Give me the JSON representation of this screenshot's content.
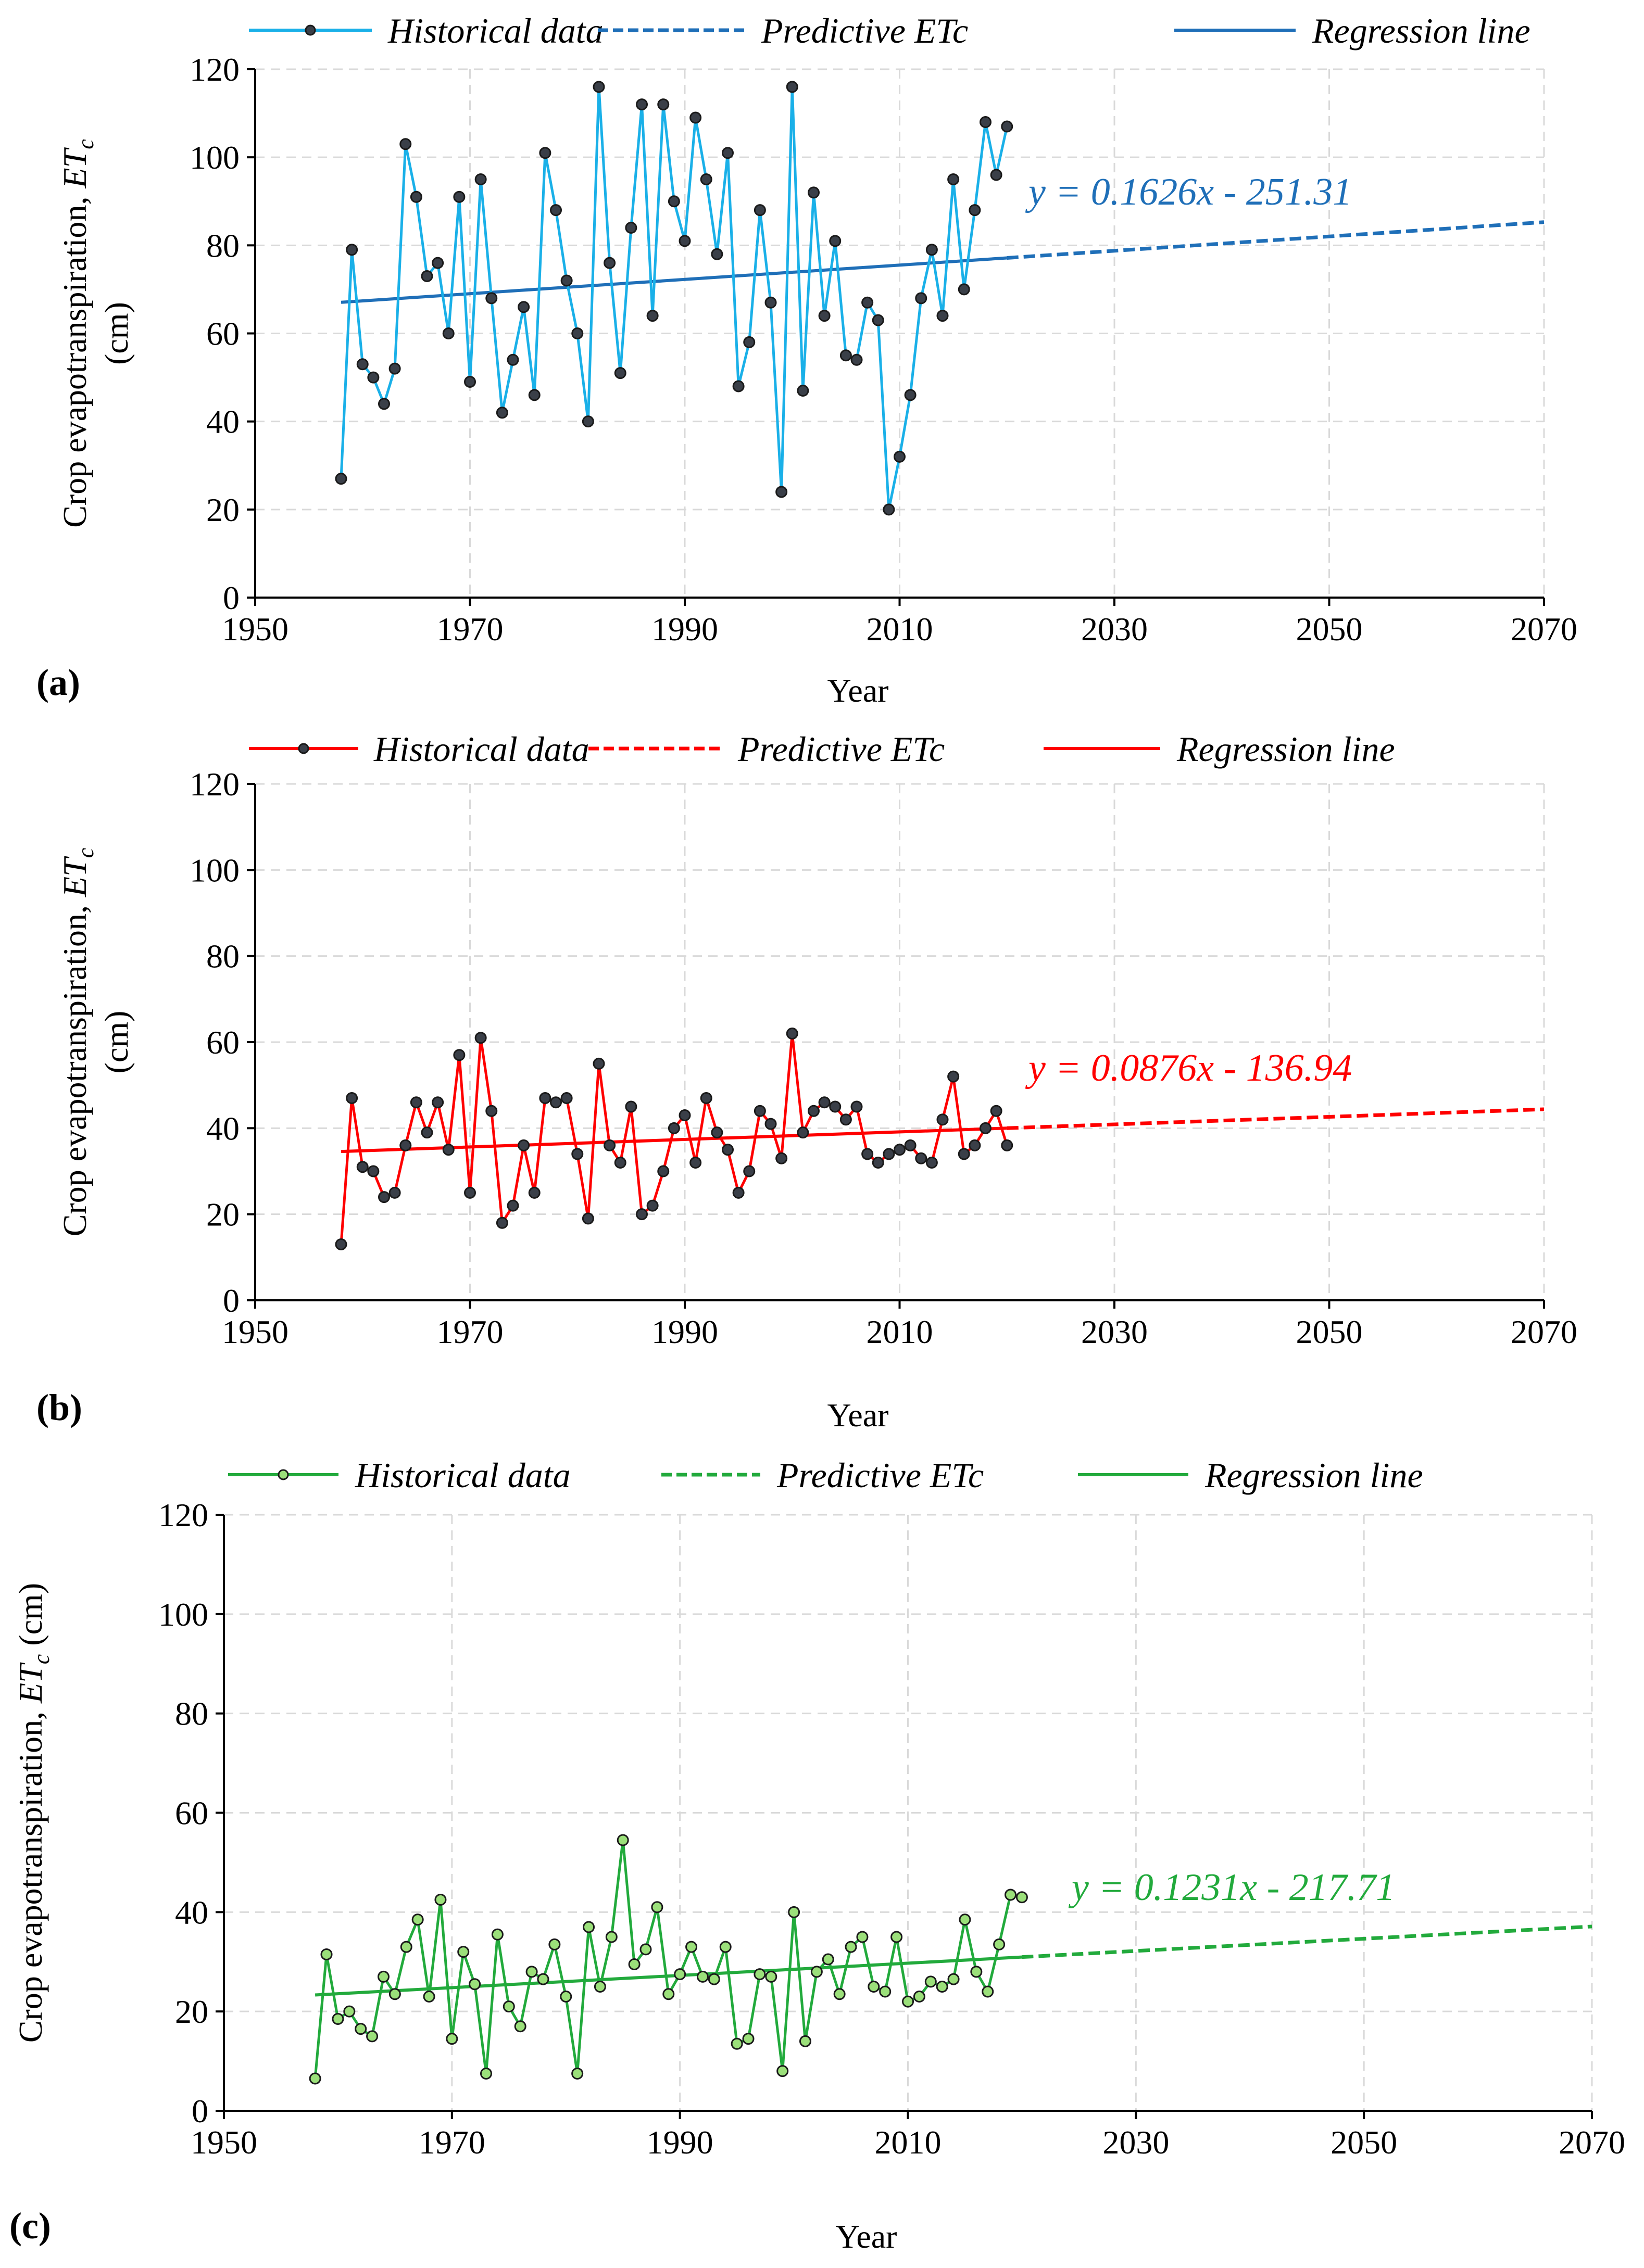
{
  "colors": {
    "panel_a": {
      "historical": "#1ab0e8",
      "regression": "#1f6fb8"
    },
    "panel_b": {
      "historical": "#ff0000",
      "regression": "#ff0000"
    },
    "panel_c": {
      "historical": "#22aa3c",
      "regression": "#22aa3c"
    }
  },
  "chart_data": [
    {
      "panel": "(a)",
      "type": "line",
      "legend": [
        "Historical data",
        "Predictive ETc",
        "Regression line"
      ],
      "xlabel": "Year",
      "ylabel_main": "Crop evapotranspiration,",
      "ylabel_symbol": "ET",
      "ylabel_subscript": "c",
      "ylabel_unit": "(cm)",
      "xlim": [
        1950,
        2070
      ],
      "ylim": [
        0,
        120
      ],
      "xticks": [
        "1950",
        "1970",
        "1990",
        "2010",
        "2030",
        "2050",
        "2070"
      ],
      "yticks": [
        "0",
        "20",
        "40",
        "60",
        "80",
        "100",
        "120"
      ],
      "equation": "y = 0.1626x - 251.31",
      "regression": {
        "slope": 0.1626,
        "intercept": -251.31,
        "fit_range": [
          1958,
          2020
        ],
        "predict_range": [
          2020,
          2070
        ]
      },
      "series": [
        {
          "name": "Historical data",
          "x": [
            1958,
            1959,
            1960,
            1961,
            1962,
            1963,
            1964,
            1965,
            1966,
            1967,
            1968,
            1969,
            1970,
            1971,
            1972,
            1973,
            1974,
            1975,
            1976,
            1977,
            1978,
            1979,
            1980,
            1981,
            1982,
            1983,
            1984,
            1985,
            1986,
            1987,
            1988,
            1989,
            1990,
            1991,
            1992,
            1993,
            1994,
            1995,
            1996,
            1997,
            1998,
            1999,
            2000,
            2001,
            2002,
            2003,
            2004,
            2005,
            2006,
            2007,
            2008,
            2009,
            2010,
            2011,
            2012,
            2013,
            2014,
            2015,
            2016,
            2017,
            2018,
            2019,
            2020
          ],
          "values": [
            27,
            79,
            53,
            50,
            44,
            52,
            103,
            91,
            73,
            76,
            60,
            91,
            49,
            95,
            68,
            42,
            54,
            66,
            46,
            101,
            88,
            72,
            60,
            40,
            116,
            76,
            51,
            84,
            112,
            64,
            112,
            90,
            81,
            109,
            95,
            78,
            101,
            48,
            58,
            88,
            67,
            24,
            116,
            47,
            92,
            64,
            81,
            55,
            54,
            67,
            63,
            20,
            32,
            46,
            68,
            79,
            64,
            95,
            70,
            88,
            108,
            96,
            107
          ]
        }
      ]
    },
    {
      "panel": "(b)",
      "type": "line",
      "legend": [
        "Historical data",
        "Predictive ETc",
        "Regression line"
      ],
      "xlabel": "Year",
      "ylabel_main": "Crop evapotranspiration,",
      "ylabel_symbol": "ET",
      "ylabel_subscript": "c",
      "ylabel_unit": "(cm)",
      "xlim": [
        1950,
        2070
      ],
      "ylim": [
        0,
        120
      ],
      "xticks": [
        "1950",
        "1970",
        "1990",
        "2010",
        "2030",
        "2050",
        "2070"
      ],
      "yticks": [
        "0",
        "20",
        "40",
        "60",
        "80",
        "100",
        "120"
      ],
      "equation": "y = 0.0876x - 136.94",
      "regression": {
        "slope": 0.0876,
        "intercept": -136.94,
        "fit_range": [
          1958,
          2020
        ],
        "predict_range": [
          2020,
          2070
        ]
      },
      "series": [
        {
          "name": "Historical data",
          "x": [
            1958,
            1959,
            1960,
            1961,
            1962,
            1963,
            1964,
            1965,
            1966,
            1967,
            1968,
            1969,
            1970,
            1971,
            1972,
            1973,
            1974,
            1975,
            1976,
            1977,
            1978,
            1979,
            1980,
            1981,
            1982,
            1983,
            1984,
            1985,
            1986,
            1987,
            1988,
            1989,
            1990,
            1991,
            1992,
            1993,
            1994,
            1995,
            1996,
            1997,
            1998,
            1999,
            2000,
            2001,
            2002,
            2003,
            2004,
            2005,
            2006,
            2007,
            2008,
            2009,
            2010,
            2011,
            2012,
            2013,
            2014,
            2015,
            2016,
            2017,
            2018,
            2019,
            2020
          ],
          "values": [
            13,
            47,
            31,
            30,
            24,
            25,
            36,
            46,
            39,
            46,
            35,
            57,
            25,
            61,
            44,
            18,
            22,
            36,
            25,
            47,
            46,
            47,
            34,
            19,
            55,
            36,
            32,
            45,
            20,
            22,
            30,
            40,
            43,
            32,
            47,
            39,
            35,
            25,
            30,
            44,
            41,
            33,
            62,
            39,
            44,
            46,
            45,
            42,
            45,
            34,
            32,
            34,
            35,
            36,
            33,
            32,
            42,
            52,
            34,
            36,
            40,
            44,
            36
          ]
        }
      ]
    },
    {
      "panel": "(c)",
      "type": "line",
      "legend": [
        "Historical data",
        "Predictive ETc",
        "Regression line"
      ],
      "xlabel": "Year",
      "ylabel_main": "Crop evapotranspiration,",
      "ylabel_symbol": "ET",
      "ylabel_subscript": "c",
      "ylabel_unit": "(cm)",
      "xlim": [
        1950,
        2070
      ],
      "ylim": [
        0,
        120
      ],
      "xticks": [
        "1950",
        "1970",
        "1990",
        "2010",
        "2030",
        "2050",
        "2070"
      ],
      "yticks": [
        "0",
        "20",
        "40",
        "60",
        "80",
        "100",
        "120"
      ],
      "equation": "y = 0.1231x - 217.71",
      "regression": {
        "slope": 0.1231,
        "intercept": -217.71,
        "fit_range": [
          1958,
          2020
        ],
        "predict_range": [
          2020,
          2070
        ]
      },
      "series": [
        {
          "name": "Historical data",
          "x": [
            1958,
            1959,
            1960,
            1961,
            1962,
            1963,
            1964,
            1965,
            1966,
            1967,
            1968,
            1969,
            1970,
            1971,
            1972,
            1973,
            1974,
            1975,
            1976,
            1977,
            1978,
            1979,
            1980,
            1981,
            1982,
            1983,
            1984,
            1985,
            1986,
            1987,
            1988,
            1989,
            1990,
            1991,
            1992,
            1993,
            1994,
            1995,
            1996,
            1997,
            1998,
            1999,
            2000,
            2001,
            2002,
            2003,
            2004,
            2005,
            2006,
            2007,
            2008,
            2009,
            2010,
            2011,
            2012,
            2013,
            2014,
            2015,
            2016,
            2017,
            2018,
            2019,
            2020
          ],
          "values": [
            6.5,
            31.5,
            18.5,
            20,
            16.5,
            15,
            27,
            23.5,
            33,
            38.5,
            23,
            42.5,
            14.5,
            32,
            25.5,
            7.5,
            35.5,
            21,
            17,
            28,
            26.5,
            33.5,
            23,
            7.5,
            37,
            25,
            35,
            54.5,
            29.5,
            32.5,
            41,
            23.5,
            27.5,
            33,
            27,
            26.5,
            33,
            13.5,
            14.5,
            27.5,
            27,
            8,
            40,
            14,
            28,
            30.5,
            23.5,
            33,
            35,
            25,
            24,
            35,
            22,
            23,
            26,
            25,
            26.5,
            38.5,
            28,
            24,
            33.5,
            43.5,
            43
          ]
        }
      ]
    }
  ]
}
